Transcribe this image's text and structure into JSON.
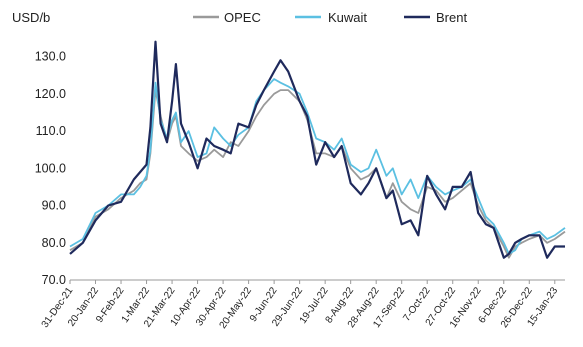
{
  "chart_data": {
    "type": "line",
    "title": "",
    "xlabel": "",
    "ylabel": "USD/b",
    "ylim": [
      70,
      135
    ],
    "yticks": [
      70,
      80,
      90,
      100,
      110,
      120,
      130
    ],
    "ytick_labels": [
      "70.0",
      "80.0",
      "90.0",
      "100.0",
      "110.0",
      "120.0",
      "130.0"
    ],
    "xlim": [
      "2021-12-31",
      "2023-01-23"
    ],
    "xticks": [
      "2021-12-31",
      "2022-01-20",
      "2022-02-09",
      "2022-03-01",
      "2022-03-21",
      "2022-04-10",
      "2022-04-30",
      "2022-05-20",
      "2022-06-09",
      "2022-06-29",
      "2022-07-19",
      "2022-08-08",
      "2022-08-28",
      "2022-09-17",
      "2022-10-07",
      "2022-10-27",
      "2022-11-16",
      "2022-12-06",
      "2022-12-26",
      "2023-01-15"
    ],
    "xtick_labels": [
      "31-Dec-21",
      "20-Jan-22",
      "9-Feb-22",
      "1-Mar-22",
      "21-Mar-22",
      "10-Apr-22",
      "30-Apr-22",
      "20-May-22",
      "9-Jun-22",
      "29-Jun-22",
      "19-Jul-22",
      "8-Aug-22",
      "28-Aug-22",
      "17-Sep-22",
      "7-Oct-22",
      "27-Oct-22",
      "16-Nov-22",
      "6-Dec-22",
      "26-Dec-22",
      "15-Jan-23"
    ],
    "grid": false,
    "legend_position": "top",
    "series": [
      {
        "name": "OPEC",
        "color": "#9a9a9a",
        "x": [
          "2021-12-31",
          "2022-01-10",
          "2022-01-20",
          "2022-01-30",
          "2022-02-09",
          "2022-02-19",
          "2022-02-24",
          "2022-03-01",
          "2022-03-04",
          "2022-03-08",
          "2022-03-12",
          "2022-03-17",
          "2022-03-21",
          "2022-03-24",
          "2022-03-28",
          "2022-04-03",
          "2022-04-10",
          "2022-04-17",
          "2022-04-23",
          "2022-04-30",
          "2022-05-06",
          "2022-05-12",
          "2022-05-20",
          "2022-05-26",
          "2022-06-01",
          "2022-06-09",
          "2022-06-14",
          "2022-06-20",
          "2022-06-29",
          "2022-07-05",
          "2022-07-12",
          "2022-07-19",
          "2022-07-26",
          "2022-08-01",
          "2022-08-08",
          "2022-08-16",
          "2022-08-22",
          "2022-08-28",
          "2022-09-05",
          "2022-09-10",
          "2022-09-17",
          "2022-09-24",
          "2022-09-30",
          "2022-10-07",
          "2022-10-14",
          "2022-10-21",
          "2022-10-27",
          "2022-11-03",
          "2022-11-10",
          "2022-11-16",
          "2022-11-22",
          "2022-11-28",
          "2022-12-06",
          "2022-12-10",
          "2022-12-15",
          "2022-12-20",
          "2022-12-26",
          "2023-01-03",
          "2023-01-09",
          "2023-01-15",
          "2023-01-23"
        ],
        "y": [
          78,
          80,
          87,
          89,
          92,
          94,
          96,
          97,
          104,
          121,
          114,
          107,
          112,
          114,
          106,
          104,
          102,
          103,
          105,
          103,
          107,
          106,
          110,
          114,
          117,
          120,
          121,
          121,
          118,
          113,
          104,
          104,
          103,
          106,
          100,
          97,
          98,
          100,
          92,
          96,
          91,
          89,
          88,
          95,
          94,
          91,
          92,
          94,
          96,
          90,
          86,
          84,
          79,
          76,
          79,
          80,
          81,
          82,
          80,
          81,
          83
        ]
      },
      {
        "name": "Kuwait",
        "color": "#5bc0e2",
        "x": [
          "2021-12-31",
          "2022-01-10",
          "2022-01-20",
          "2022-01-30",
          "2022-02-09",
          "2022-02-19",
          "2022-02-24",
          "2022-03-01",
          "2022-03-04",
          "2022-03-08",
          "2022-03-12",
          "2022-03-17",
          "2022-03-21",
          "2022-03-24",
          "2022-03-28",
          "2022-04-03",
          "2022-04-10",
          "2022-04-17",
          "2022-04-23",
          "2022-04-30",
          "2022-05-06",
          "2022-05-12",
          "2022-05-20",
          "2022-05-26",
          "2022-06-01",
          "2022-06-09",
          "2022-06-14",
          "2022-06-20",
          "2022-06-29",
          "2022-07-05",
          "2022-07-12",
          "2022-07-19",
          "2022-07-26",
          "2022-08-01",
          "2022-08-08",
          "2022-08-16",
          "2022-08-22",
          "2022-08-28",
          "2022-09-05",
          "2022-09-10",
          "2022-09-17",
          "2022-09-24",
          "2022-09-30",
          "2022-10-07",
          "2022-10-14",
          "2022-10-21",
          "2022-10-27",
          "2022-11-03",
          "2022-11-10",
          "2022-11-16",
          "2022-11-22",
          "2022-11-28",
          "2022-12-06",
          "2022-12-10",
          "2022-12-15",
          "2022-12-20",
          "2022-12-26",
          "2023-01-03",
          "2023-01-09",
          "2023-01-15",
          "2023-01-23"
        ],
        "y": [
          79,
          81,
          88,
          90,
          93,
          93,
          95,
          98,
          105,
          123,
          113,
          108,
          113,
          115,
          107,
          110,
          103,
          104,
          111,
          108,
          106,
          109,
          111,
          118,
          121,
          124,
          123,
          122,
          120,
          115,
          108,
          107,
          105,
          108,
          101,
          99,
          100,
          105,
          98,
          100,
          93,
          97,
          92,
          98,
          95,
          93,
          94,
          95,
          97,
          92,
          87,
          85,
          80,
          77,
          78,
          81,
          82,
          83,
          81,
          82,
          84
        ]
      },
      {
        "name": "Brent",
        "color": "#1f2a5c",
        "x": [
          "2021-12-31",
          "2022-01-10",
          "2022-01-20",
          "2022-01-30",
          "2022-02-09",
          "2022-02-19",
          "2022-02-24",
          "2022-03-01",
          "2022-03-04",
          "2022-03-08",
          "2022-03-12",
          "2022-03-17",
          "2022-03-21",
          "2022-03-24",
          "2022-03-28",
          "2022-04-03",
          "2022-04-10",
          "2022-04-17",
          "2022-04-23",
          "2022-04-30",
          "2022-05-06",
          "2022-05-12",
          "2022-05-20",
          "2022-05-26",
          "2022-06-01",
          "2022-06-09",
          "2022-06-14",
          "2022-06-20",
          "2022-06-29",
          "2022-07-05",
          "2022-07-12",
          "2022-07-19",
          "2022-07-26",
          "2022-08-01",
          "2022-08-08",
          "2022-08-16",
          "2022-08-22",
          "2022-08-28",
          "2022-09-05",
          "2022-09-10",
          "2022-09-17",
          "2022-09-24",
          "2022-09-30",
          "2022-10-07",
          "2022-10-14",
          "2022-10-21",
          "2022-10-27",
          "2022-11-03",
          "2022-11-10",
          "2022-11-16",
          "2022-11-22",
          "2022-11-28",
          "2022-12-06",
          "2022-12-10",
          "2022-12-15",
          "2022-12-20",
          "2022-12-26",
          "2023-01-03",
          "2023-01-09",
          "2023-01-15",
          "2023-01-23"
        ],
        "y": [
          77,
          80,
          86,
          90,
          91,
          97,
          99,
          101,
          111,
          134,
          112,
          107,
          118,
          128,
          112,
          107,
          100,
          108,
          106,
          105,
          104,
          112,
          111,
          117,
          121,
          126,
          129,
          126,
          118,
          114,
          101,
          107,
          103,
          106,
          96,
          93,
          96,
          100,
          92,
          94,
          85,
          86,
          82,
          98,
          93,
          89,
          95,
          95,
          99,
          88,
          85,
          84,
          76,
          77,
          80,
          81,
          82,
          82,
          76,
          79,
          79
        ]
      }
    ]
  }
}
